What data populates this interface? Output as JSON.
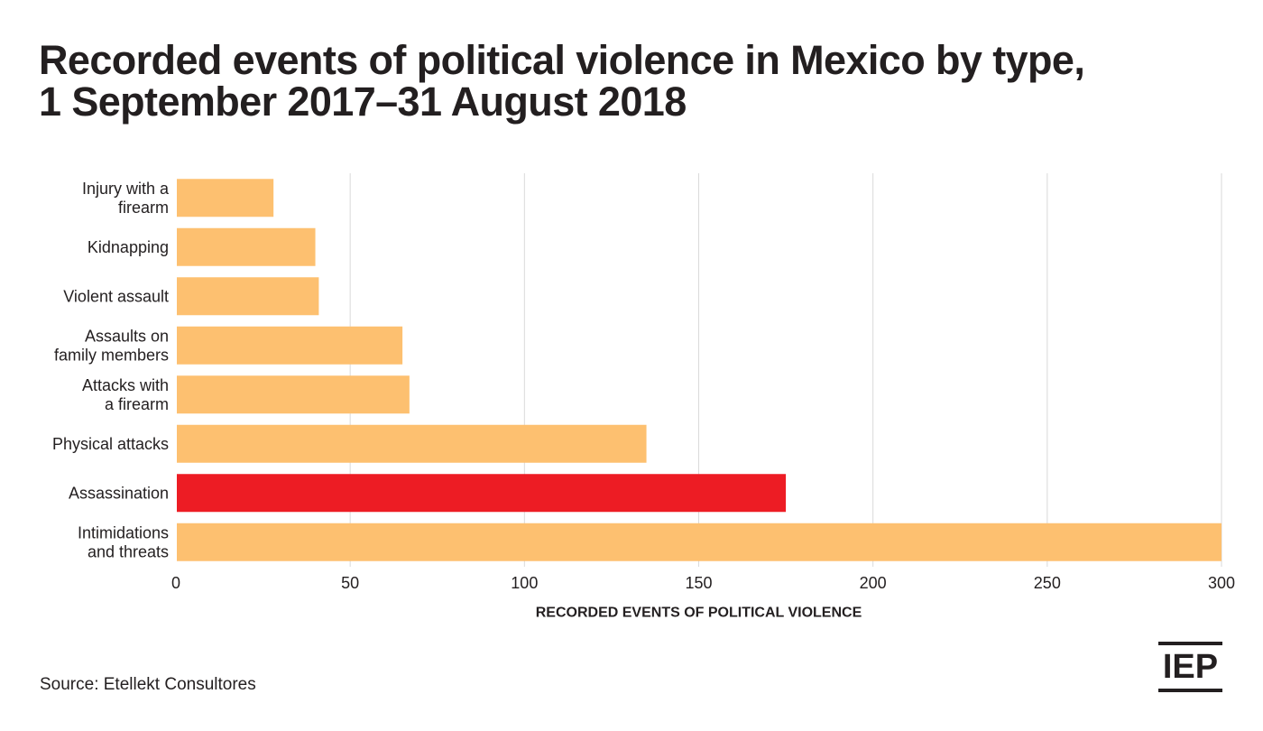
{
  "title_lines": [
    "Recorded events of political violence in Mexico by type,",
    "1 September 2017–31 August 2018"
  ],
  "source": "Source: Etellekt Consultores",
  "logo_text": "IEP",
  "colors": {
    "bar": "#FDC070",
    "highlight": "#ED1C24",
    "grid": "#DADADA",
    "text": "#231F20"
  },
  "chart_data": {
    "type": "bar",
    "orientation": "horizontal",
    "categories": [
      [
        "Injury with a",
        "firearm"
      ],
      [
        "Kidnapping"
      ],
      [
        "Violent assault"
      ],
      [
        "Assaults on",
        "family members"
      ],
      [
        "Attacks with",
        "a firearm"
      ],
      [
        "Physical attacks"
      ],
      [
        "Assassination"
      ],
      [
        "Intimidations",
        "and threats"
      ]
    ],
    "values": [
      28,
      40,
      41,
      65,
      67,
      135,
      175,
      300
    ],
    "highlight_index": 6,
    "xlabel": "RECORDED EVENTS OF POLITICAL VIOLENCE",
    "xlim": [
      0,
      300
    ],
    "xticks": [
      0,
      50,
      100,
      150,
      200,
      250,
      300
    ],
    "grid": "vertical"
  }
}
